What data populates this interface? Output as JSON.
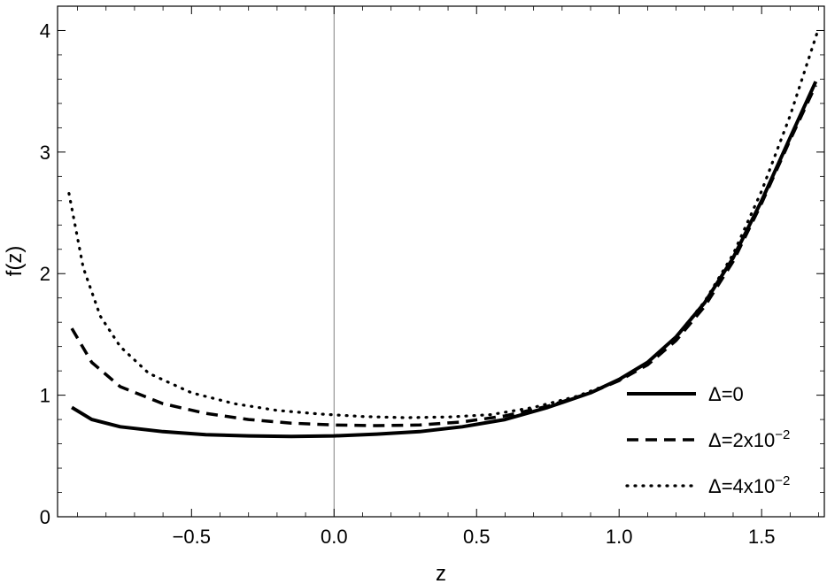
{
  "chart_data": {
    "type": "line",
    "xlabel": "z",
    "ylabel": "f(z)",
    "xlim": [
      -0.97,
      1.72
    ],
    "ylim": [
      0,
      4.2
    ],
    "x_ticks": [
      "-0.5",
      "0.0",
      "0.5",
      "1.0",
      "1.5"
    ],
    "y_ticks": [
      "0",
      "1",
      "2",
      "3",
      "4"
    ],
    "grid": false,
    "frame": true,
    "vertical_reference_line_at_x": 0,
    "legend_position": "lower-right",
    "series": [
      {
        "name": "Δ=0",
        "legend_main": "Δ=0",
        "legend_sup": "",
        "style": "solid",
        "points": [
          [
            -0.92,
            0.9
          ],
          [
            -0.85,
            0.8
          ],
          [
            -0.75,
            0.74
          ],
          [
            -0.6,
            0.7
          ],
          [
            -0.45,
            0.675
          ],
          [
            -0.3,
            0.665
          ],
          [
            -0.15,
            0.66
          ],
          [
            0.0,
            0.665
          ],
          [
            0.15,
            0.68
          ],
          [
            0.3,
            0.7
          ],
          [
            0.45,
            0.74
          ],
          [
            0.6,
            0.8
          ],
          [
            0.75,
            0.9
          ],
          [
            0.9,
            1.02
          ],
          [
            1.0,
            1.13
          ],
          [
            1.1,
            1.27
          ],
          [
            1.2,
            1.48
          ],
          [
            1.3,
            1.76
          ],
          [
            1.4,
            2.13
          ],
          [
            1.5,
            2.6
          ],
          [
            1.6,
            3.12
          ],
          [
            1.69,
            3.58
          ]
        ]
      },
      {
        "name": "Δ=2x10−2",
        "legend_main": "Δ=2x10",
        "legend_sup": "−2",
        "style": "dashed",
        "points": [
          [
            -0.92,
            1.55
          ],
          [
            -0.85,
            1.27
          ],
          [
            -0.75,
            1.07
          ],
          [
            -0.6,
            0.93
          ],
          [
            -0.45,
            0.85
          ],
          [
            -0.3,
            0.8
          ],
          [
            -0.15,
            0.77
          ],
          [
            0.0,
            0.755
          ],
          [
            0.15,
            0.75
          ],
          [
            0.3,
            0.755
          ],
          [
            0.45,
            0.78
          ],
          [
            0.6,
            0.83
          ],
          [
            0.75,
            0.91
          ],
          [
            0.9,
            1.02
          ],
          [
            1.0,
            1.12
          ],
          [
            1.1,
            1.25
          ],
          [
            1.2,
            1.45
          ],
          [
            1.3,
            1.73
          ],
          [
            1.4,
            2.1
          ],
          [
            1.5,
            2.58
          ],
          [
            1.6,
            3.1
          ],
          [
            1.69,
            3.55
          ]
        ]
      },
      {
        "name": "Δ=4x10−2",
        "legend_main": "Δ=4x10",
        "legend_sup": "−2",
        "style": "dotted",
        "points": [
          [
            -0.93,
            2.66
          ],
          [
            -0.88,
            2.05
          ],
          [
            -0.82,
            1.65
          ],
          [
            -0.75,
            1.4
          ],
          [
            -0.65,
            1.18
          ],
          [
            -0.5,
            1.02
          ],
          [
            -0.35,
            0.93
          ],
          [
            -0.2,
            0.875
          ],
          [
            -0.05,
            0.845
          ],
          [
            0.1,
            0.825
          ],
          [
            0.25,
            0.815
          ],
          [
            0.4,
            0.82
          ],
          [
            0.55,
            0.84
          ],
          [
            0.7,
            0.9
          ],
          [
            0.85,
            0.99
          ],
          [
            1.0,
            1.12
          ],
          [
            1.1,
            1.27
          ],
          [
            1.2,
            1.48
          ],
          [
            1.3,
            1.77
          ],
          [
            1.4,
            2.16
          ],
          [
            1.5,
            2.68
          ],
          [
            1.6,
            3.3
          ],
          [
            1.7,
            4.02
          ]
        ]
      }
    ]
  }
}
